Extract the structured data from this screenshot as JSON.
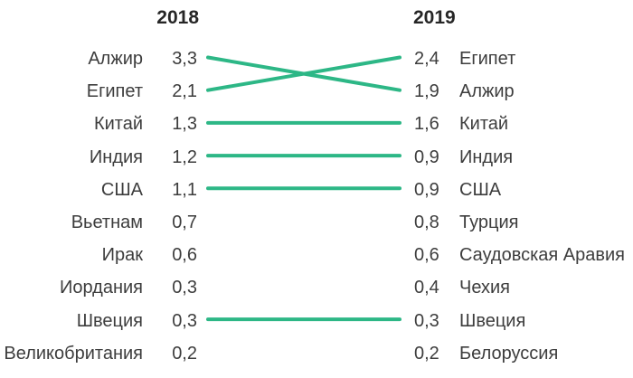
{
  "chart_data": {
    "type": "table",
    "subtype": "slope-chart",
    "columns": [
      "2018",
      "2019"
    ],
    "left_rows": [
      {
        "label": "Алжир",
        "value": "3,3"
      },
      {
        "label": "Египет",
        "value": "2,1"
      },
      {
        "label": "Китай",
        "value": "1,3"
      },
      {
        "label": "Индия",
        "value": "1,2"
      },
      {
        "label": "США",
        "value": "1,1"
      },
      {
        "label": "Вьетнам",
        "value": "0,7"
      },
      {
        "label": "Ирак",
        "value": "0,6"
      },
      {
        "label": "Иордания",
        "value": "0,3"
      },
      {
        "label": "Швеция",
        "value": "0,3"
      },
      {
        "label": "Великобритания",
        "value": "0,2"
      }
    ],
    "right_rows": [
      {
        "value": "2,4",
        "label": "Египет"
      },
      {
        "value": "1,9",
        "label": "Алжир"
      },
      {
        "value": "1,6",
        "label": "Китай"
      },
      {
        "value": "0,9",
        "label": "Индия"
      },
      {
        "value": "0,9",
        "label": "США"
      },
      {
        "value": "0,8",
        "label": "Турция"
      },
      {
        "value": "0,6",
        "label": "Саудовская Аравия"
      },
      {
        "value": "0,4",
        "label": "Чехия"
      },
      {
        "value": "0,3",
        "label": "Швеция"
      },
      {
        "value": "0,2",
        "label": "Белоруссия"
      }
    ],
    "links": [
      {
        "country": "Алжир",
        "left_index": 0,
        "right_index": 1
      },
      {
        "country": "Египет",
        "left_index": 1,
        "right_index": 0
      },
      {
        "country": "Китай",
        "left_index": 2,
        "right_index": 2
      },
      {
        "country": "Индия",
        "left_index": 3,
        "right_index": 3
      },
      {
        "country": "США",
        "left_index": 4,
        "right_index": 4
      },
      {
        "country": "Швеция",
        "left_index": 8,
        "right_index": 8
      }
    ],
    "line_color": "#2db786",
    "text_color": "#3d3d3d",
    "header_color": "#262626"
  }
}
